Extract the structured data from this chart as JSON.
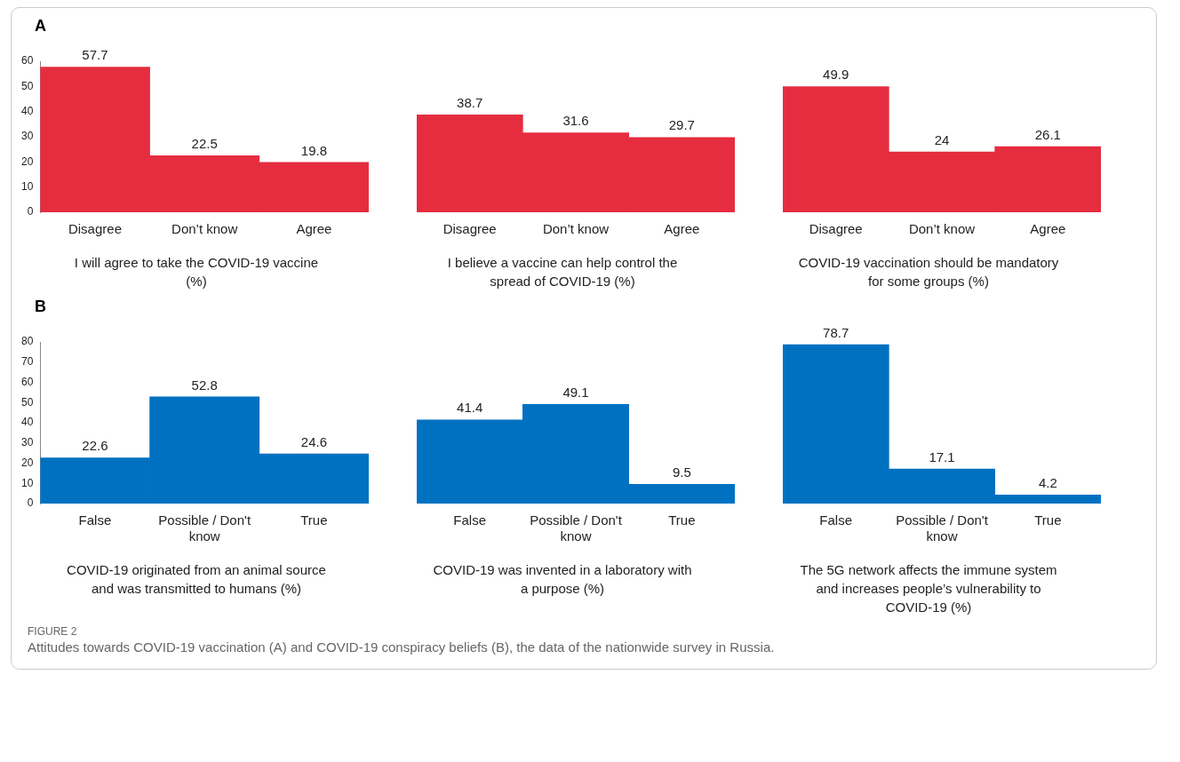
{
  "chart_data": [
    {
      "type": "bar",
      "title": "A",
      "categories": [
        "Disagree",
        "Don’t know",
        "Agree"
      ],
      "values": [
        57.7,
        22.5,
        19.8
      ],
      "color": "#e52d3f",
      "ylim": [
        0,
        60
      ],
      "yticks": [
        0,
        10,
        20,
        30,
        40,
        50,
        60
      ],
      "data_labels": true,
      "grid": false,
      "xlabel": "I will agree to take the COVID-19 vaccine (%)"
    },
    {
      "type": "bar",
      "categories": [
        "Disagree",
        "Don’t know",
        "Agree"
      ],
      "values": [
        38.7,
        31.6,
        29.7
      ],
      "color": "#e52d3f",
      "ylim": [
        0,
        60
      ],
      "tick_labels": "x",
      "data_labels": true,
      "grid": false,
      "xlabel": "I believe a vaccine can help control the spread of COVID-19 (%)"
    },
    {
      "type": "bar",
      "categories": [
        "Disagree",
        "Don’t know",
        "Agree"
      ],
      "values": [
        49.9,
        24,
        26.1
      ],
      "color": "#e52d3f",
      "ylim": [
        0,
        60
      ],
      "tick_labels": "x",
      "data_labels": true,
      "grid": false,
      "xlabel": "COVID-19 vaccination should be mandatory for some groups (%)"
    },
    {
      "type": "bar",
      "title": "B",
      "categories": [
        "False",
        "Possible / Don't know",
        "True"
      ],
      "values": [
        22.6,
        52.8,
        24.6
      ],
      "color": "#0071c1",
      "ylim": [
        0,
        80
      ],
      "yticks": [
        0,
        10,
        20,
        30,
        40,
        50,
        60,
        70,
        80
      ],
      "data_labels": true,
      "grid": false,
      "xlabel": "COVID-19 originated from an animal source and was transmitted to humans (%)"
    },
    {
      "type": "bar",
      "categories": [
        "False",
        "Possible / Don't know",
        "True"
      ],
      "values": [
        41.4,
        49.1,
        9.5
      ],
      "color": "#0071c1",
      "ylim": [
        0,
        80
      ],
      "tick_labels": "x",
      "data_labels": true,
      "grid": false,
      "xlabel": "COVID-19 was invented in a laboratory with a purpose (%)"
    },
    {
      "type": "bar",
      "categories": [
        "False",
        "Possible / Don't know",
        "True"
      ],
      "values": [
        78.7,
        17.1,
        4.2
      ],
      "color": "#0071c1",
      "ylim": [
        0,
        80
      ],
      "tick_labels": "x",
      "data_labels": true,
      "grid": false,
      "xlabel": "The 5G network affects the immune system and increases people’s vulnerability to COVID-19 (%)",
      "annotations": [
        "FIGURE 2",
        "Attitudes towards COVID-19 vaccination (A) and COVID-19 conspiracy beliefs (B), the data of the nationwide survey in Russia."
      ]
    }
  ]
}
